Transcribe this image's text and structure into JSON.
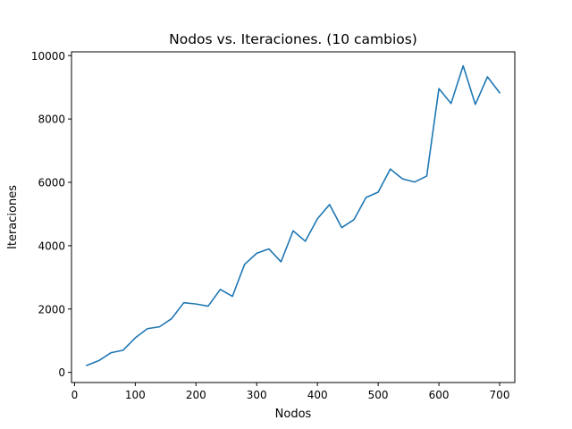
{
  "chart_data": {
    "type": "line",
    "title": "Nodos vs. Iteraciones. (10 cambios)",
    "xlabel": "Nodos",
    "ylabel": "Iteraciones",
    "xlim": [
      -5,
      725
    ],
    "ylim": [
      -320,
      10120
    ],
    "xticks": [
      0,
      100,
      200,
      300,
      400,
      500,
      600,
      700
    ],
    "yticks": [
      0,
      2000,
      4000,
      6000,
      8000,
      10000
    ],
    "grid": false,
    "legend": "none",
    "series": [
      {
        "color": "#1f77b4",
        "x": [
          20,
          40,
          60,
          80,
          100,
          120,
          140,
          160,
          180,
          200,
          220,
          240,
          260,
          280,
          300,
          320,
          340,
          360,
          380,
          400,
          420,
          440,
          460,
          480,
          500,
          520,
          540,
          560,
          580,
          600,
          620,
          640,
          660,
          680,
          700
        ],
        "y": [
          220,
          370,
          620,
          700,
          1090,
          1380,
          1440,
          1700,
          2200,
          2160,
          2090,
          2620,
          2400,
          3410,
          3760,
          3900,
          3490,
          4470,
          4140,
          4850,
          5300,
          4570,
          4820,
          5520,
          5690,
          6420,
          6110,
          6010,
          6200,
          8960,
          8490,
          9680,
          8460,
          9330,
          8830
        ]
      }
    ]
  }
}
